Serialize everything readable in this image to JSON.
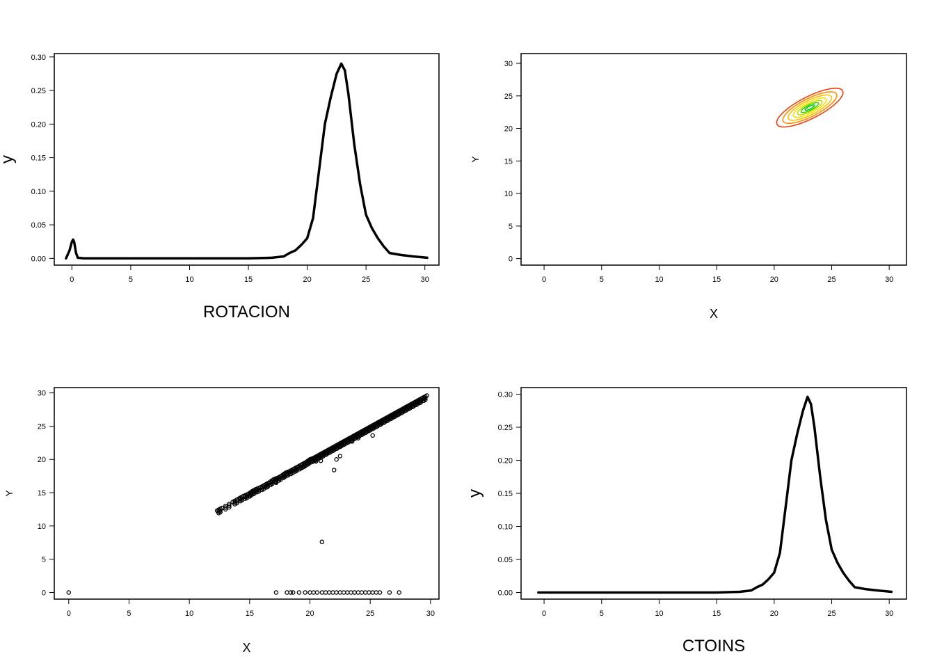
{
  "chart_data": [
    {
      "id": "density-rotacion",
      "type": "line",
      "title": "",
      "xlabel": "ROTACION",
      "ylabel": "y",
      "xlim": [
        -1.5,
        31.2
      ],
      "ylim": [
        -0.01,
        0.305
      ],
      "xticks": [
        "0",
        "5",
        "10",
        "15",
        "20",
        "25",
        "30"
      ],
      "yticks": [
        "0.00",
        "0.05",
        "0.10",
        "0.15",
        "0.20",
        "0.25",
        "0.30"
      ],
      "grid": false,
      "series": [
        {
          "x": [
            -0.5,
            -0.2,
            0.0,
            0.1,
            0.2,
            0.35,
            0.5,
            1,
            5,
            10,
            15,
            16,
            17,
            18,
            18.5,
            19,
            19.5,
            20,
            20.5,
            21,
            21.5,
            22,
            22.5,
            22.9,
            23.2,
            23.5,
            24,
            24.5,
            25,
            25.5,
            26,
            26.5,
            27,
            28,
            29,
            30.2
          ],
          "y": [
            0.0,
            0.012,
            0.025,
            0.028,
            0.024,
            0.008,
            0.001,
            0.0,
            0.0,
            0.0,
            0.0,
            0.0005,
            0.001,
            0.003,
            0.008,
            0.012,
            0.02,
            0.03,
            0.06,
            0.13,
            0.2,
            0.24,
            0.275,
            0.29,
            0.28,
            0.245,
            0.17,
            0.11,
            0.065,
            0.045,
            0.03,
            0.018,
            0.008,
            0.005,
            0.003,
            0.001
          ]
        }
      ]
    },
    {
      "id": "contour-xy",
      "type": "contour",
      "title": "",
      "xlabel": "X",
      "ylabel": "Y",
      "xlim": [
        -2,
        31.5
      ],
      "ylim": [
        -1,
        31.5
      ],
      "xticks": [
        "0",
        "5",
        "10",
        "15",
        "20",
        "25",
        "30"
      ],
      "yticks": [
        "0",
        "5",
        "10",
        "15",
        "20",
        "25",
        "30"
      ],
      "grid": false,
      "center": [
        23.1,
        23.2
      ],
      "angle_deg": 27,
      "colors": [
        "#f04010",
        "#ff8c00",
        "#ffc000",
        "#ffe000",
        "#c0e000",
        "#40d000",
        "#00d000"
      ],
      "contours": [
        {
          "a": 3.2,
          "b": 0.95
        },
        {
          "a": 2.6,
          "b": 0.78
        },
        {
          "a": 2.1,
          "b": 0.62
        },
        {
          "a": 1.6,
          "b": 0.47
        },
        {
          "a": 1.2,
          "b": 0.34
        },
        {
          "a": 0.85,
          "b": 0.23
        },
        {
          "a": 0.45,
          "b": 0.12
        }
      ]
    },
    {
      "id": "scatter-xy",
      "type": "scatter",
      "title": "",
      "xlabel": "X",
      "ylabel": "Y",
      "xlim": [
        -1.2,
        30.7
      ],
      "ylim": [
        -1,
        30.8
      ],
      "xticks": [
        "0",
        "5",
        "10",
        "15",
        "20",
        "25",
        "30"
      ],
      "yticks": [
        "0",
        "5",
        "10",
        "15",
        "20",
        "25",
        "30"
      ],
      "grid": false,
      "diagonal_points": [
        [
          12.3,
          12.3
        ],
        [
          12.7,
          12.7
        ],
        [
          13.6,
          13.6
        ],
        [
          14.1,
          14.1
        ],
        [
          14.5,
          14.5
        ],
        [
          14.9,
          14.8
        ],
        [
          15.2,
          15.2
        ],
        [
          15.5,
          15.5
        ],
        [
          15.9,
          15.8
        ],
        [
          16.3,
          16.2
        ],
        [
          16.6,
          16.5
        ],
        [
          17.0,
          17.0
        ],
        [
          17.3,
          17.2
        ],
        [
          17.7,
          17.6
        ],
        [
          18.0,
          18.0
        ],
        [
          18.3,
          18.2
        ],
        [
          18.7,
          18.6
        ],
        [
          19.0,
          18.9
        ],
        [
          19.4,
          19.3
        ],
        [
          19.7,
          19.6
        ],
        [
          20.0,
          20.0
        ],
        [
          20.3,
          20.2
        ],
        [
          20.6,
          20.5
        ],
        [
          20.9,
          20.8
        ],
        [
          21.2,
          21.1
        ],
        [
          21.5,
          21.4
        ],
        [
          21.8,
          21.7
        ],
        [
          22.1,
          22.0
        ],
        [
          22.4,
          22.3
        ],
        [
          22.7,
          22.6
        ],
        [
          23.0,
          22.9
        ],
        [
          23.3,
          23.2
        ],
        [
          23.6,
          23.5
        ],
        [
          23.9,
          23.8
        ],
        [
          24.2,
          24.1
        ],
        [
          24.5,
          24.4
        ],
        [
          24.8,
          24.7
        ],
        [
          25.1,
          25.0
        ],
        [
          25.4,
          25.3
        ],
        [
          25.7,
          25.6
        ],
        [
          26.0,
          25.9
        ],
        [
          26.3,
          26.2
        ],
        [
          26.6,
          26.5
        ],
        [
          26.9,
          26.8
        ],
        [
          27.2,
          27.1
        ],
        [
          27.5,
          27.4
        ],
        [
          27.8,
          27.7
        ],
        [
          28.1,
          28.0
        ],
        [
          28.4,
          28.3
        ],
        [
          28.7,
          28.6
        ],
        [
          29.0,
          28.9
        ],
        [
          29.3,
          29.2
        ],
        [
          29.7,
          29.6
        ]
      ],
      "off_diagonal_points": [
        [
          17.2,
          16.5
        ],
        [
          19.4,
          18.8
        ],
        [
          20.5,
          19.7
        ],
        [
          20.9,
          19.8
        ],
        [
          22.0,
          18.4
        ],
        [
          22.2,
          20.0
        ],
        [
          22.5,
          20.5
        ],
        [
          21.0,
          7.6
        ],
        [
          24.0,
          23.2
        ],
        [
          25.2,
          23.6
        ],
        [
          23.5,
          22.7
        ]
      ],
      "zero_row_points": [
        [
          0.0,
          0.0
        ],
        [
          17.2,
          0.0
        ],
        [
          18.1,
          0.0
        ],
        [
          18.4,
          0.0
        ],
        [
          18.6,
          0.0
        ],
        [
          19.1,
          0.0
        ],
        [
          19.6,
          0.0
        ],
        [
          20.0,
          0.0
        ],
        [
          20.3,
          0.0
        ],
        [
          20.6,
          0.0
        ],
        [
          21.0,
          0.0
        ],
        [
          21.3,
          0.0
        ],
        [
          21.6,
          0.0
        ],
        [
          21.9,
          0.0
        ],
        [
          22.2,
          0.0
        ],
        [
          22.5,
          0.0
        ],
        [
          22.8,
          0.0
        ],
        [
          23.1,
          0.0
        ],
        [
          23.4,
          0.0
        ],
        [
          23.7,
          0.0
        ],
        [
          24.0,
          0.0
        ],
        [
          24.3,
          0.0
        ],
        [
          24.6,
          0.0
        ],
        [
          24.9,
          0.0
        ],
        [
          25.2,
          0.0
        ],
        [
          25.5,
          0.0
        ],
        [
          25.8,
          0.0
        ],
        [
          26.6,
          0.0
        ],
        [
          27.4,
          0.0
        ]
      ]
    },
    {
      "id": "density-ctoins",
      "type": "line",
      "title": "",
      "xlabel": "CTOINS",
      "ylabel": "y",
      "xlim": [
        -2,
        31.5
      ],
      "ylim": [
        -0.01,
        0.31
      ],
      "xticks": [
        "0",
        "5",
        "10",
        "15",
        "20",
        "25",
        "30"
      ],
      "yticks": [
        "0.00",
        "0.05",
        "0.10",
        "0.15",
        "0.20",
        "0.25",
        "0.30"
      ],
      "grid": false,
      "series": [
        {
          "x": [
            -0.5,
            5,
            10,
            15,
            16,
            17,
            18,
            18.5,
            19,
            19.5,
            20,
            20.5,
            21,
            21.5,
            22,
            22.5,
            22.9,
            23.2,
            23.5,
            24,
            24.5,
            25,
            25.5,
            26,
            26.5,
            27,
            28,
            29,
            30.2
          ],
          "y": [
            0.0,
            0.0,
            0.0,
            0.0,
            0.0005,
            0.001,
            0.003,
            0.008,
            0.012,
            0.02,
            0.03,
            0.06,
            0.13,
            0.2,
            0.24,
            0.275,
            0.296,
            0.285,
            0.25,
            0.175,
            0.11,
            0.065,
            0.045,
            0.03,
            0.018,
            0.008,
            0.005,
            0.003,
            0.001
          ]
        }
      ]
    }
  ]
}
